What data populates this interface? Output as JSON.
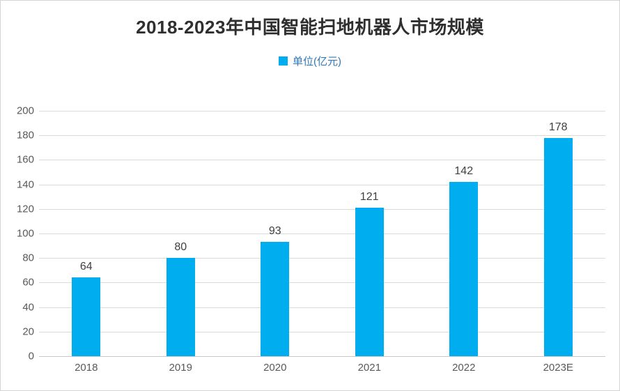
{
  "header": {
    "title": "2018-2023年中国智能扫地机器人市场规模"
  },
  "legend": {
    "label": "单位(亿元)"
  },
  "chart_data": {
    "type": "bar",
    "title": "2018-2023年中国智能扫地机器人市场规模",
    "categories": [
      "2018",
      "2019",
      "2020",
      "2021",
      "2022",
      "2023E"
    ],
    "values": [
      64,
      80,
      93,
      121,
      142,
      178
    ],
    "series_name": "单位(亿元)",
    "xlabel": "",
    "ylabel": "",
    "ylim": [
      0,
      200
    ],
    "y_ticks": [
      0,
      20,
      40,
      60,
      80,
      100,
      120,
      140,
      160,
      180,
      200
    ],
    "grid": true,
    "legend_position": "top-center",
    "bar_color": "#00AEEF",
    "gridline_color": "#dadada",
    "axis_label_color": "#595959",
    "value_label_color": "#3f3f3f",
    "legend_text_color": "#2e79bd",
    "title_color": "#2f2f2f"
  }
}
